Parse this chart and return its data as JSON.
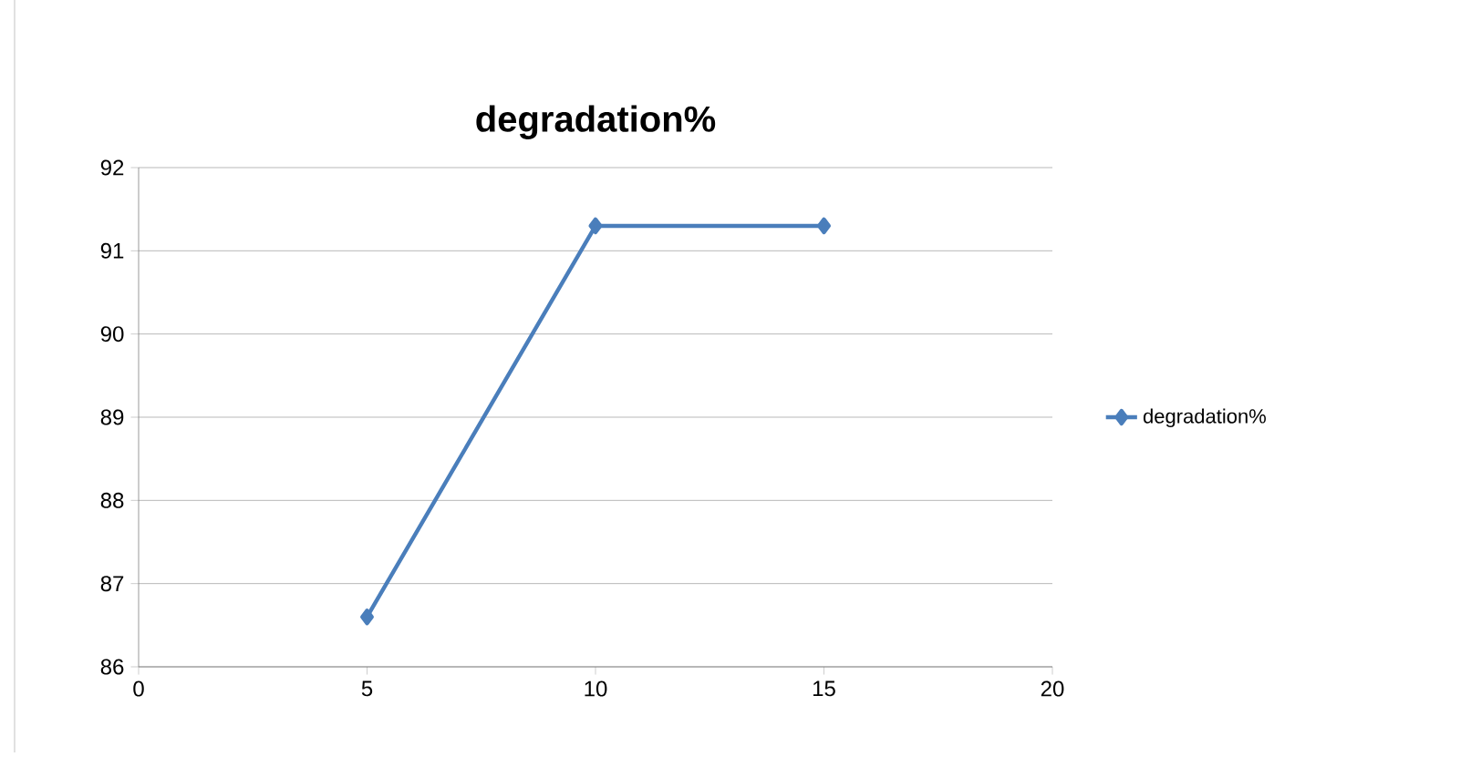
{
  "chart_data": {
    "type": "line",
    "title": "degradation%",
    "x": [
      5,
      10,
      15
    ],
    "series": [
      {
        "name": "degradation%",
        "color": "#4a7ebb",
        "values": [
          86.6,
          91.3,
          91.3
        ]
      }
    ],
    "xlim": [
      0,
      20
    ],
    "xticks": [
      0,
      5,
      10,
      15,
      20
    ],
    "ylim": [
      86,
      92
    ],
    "yticks": [
      86,
      87,
      88,
      89,
      90,
      91,
      92
    ],
    "grid": "y",
    "legend": "right",
    "marker": "diamond",
    "line_style": "solid"
  }
}
